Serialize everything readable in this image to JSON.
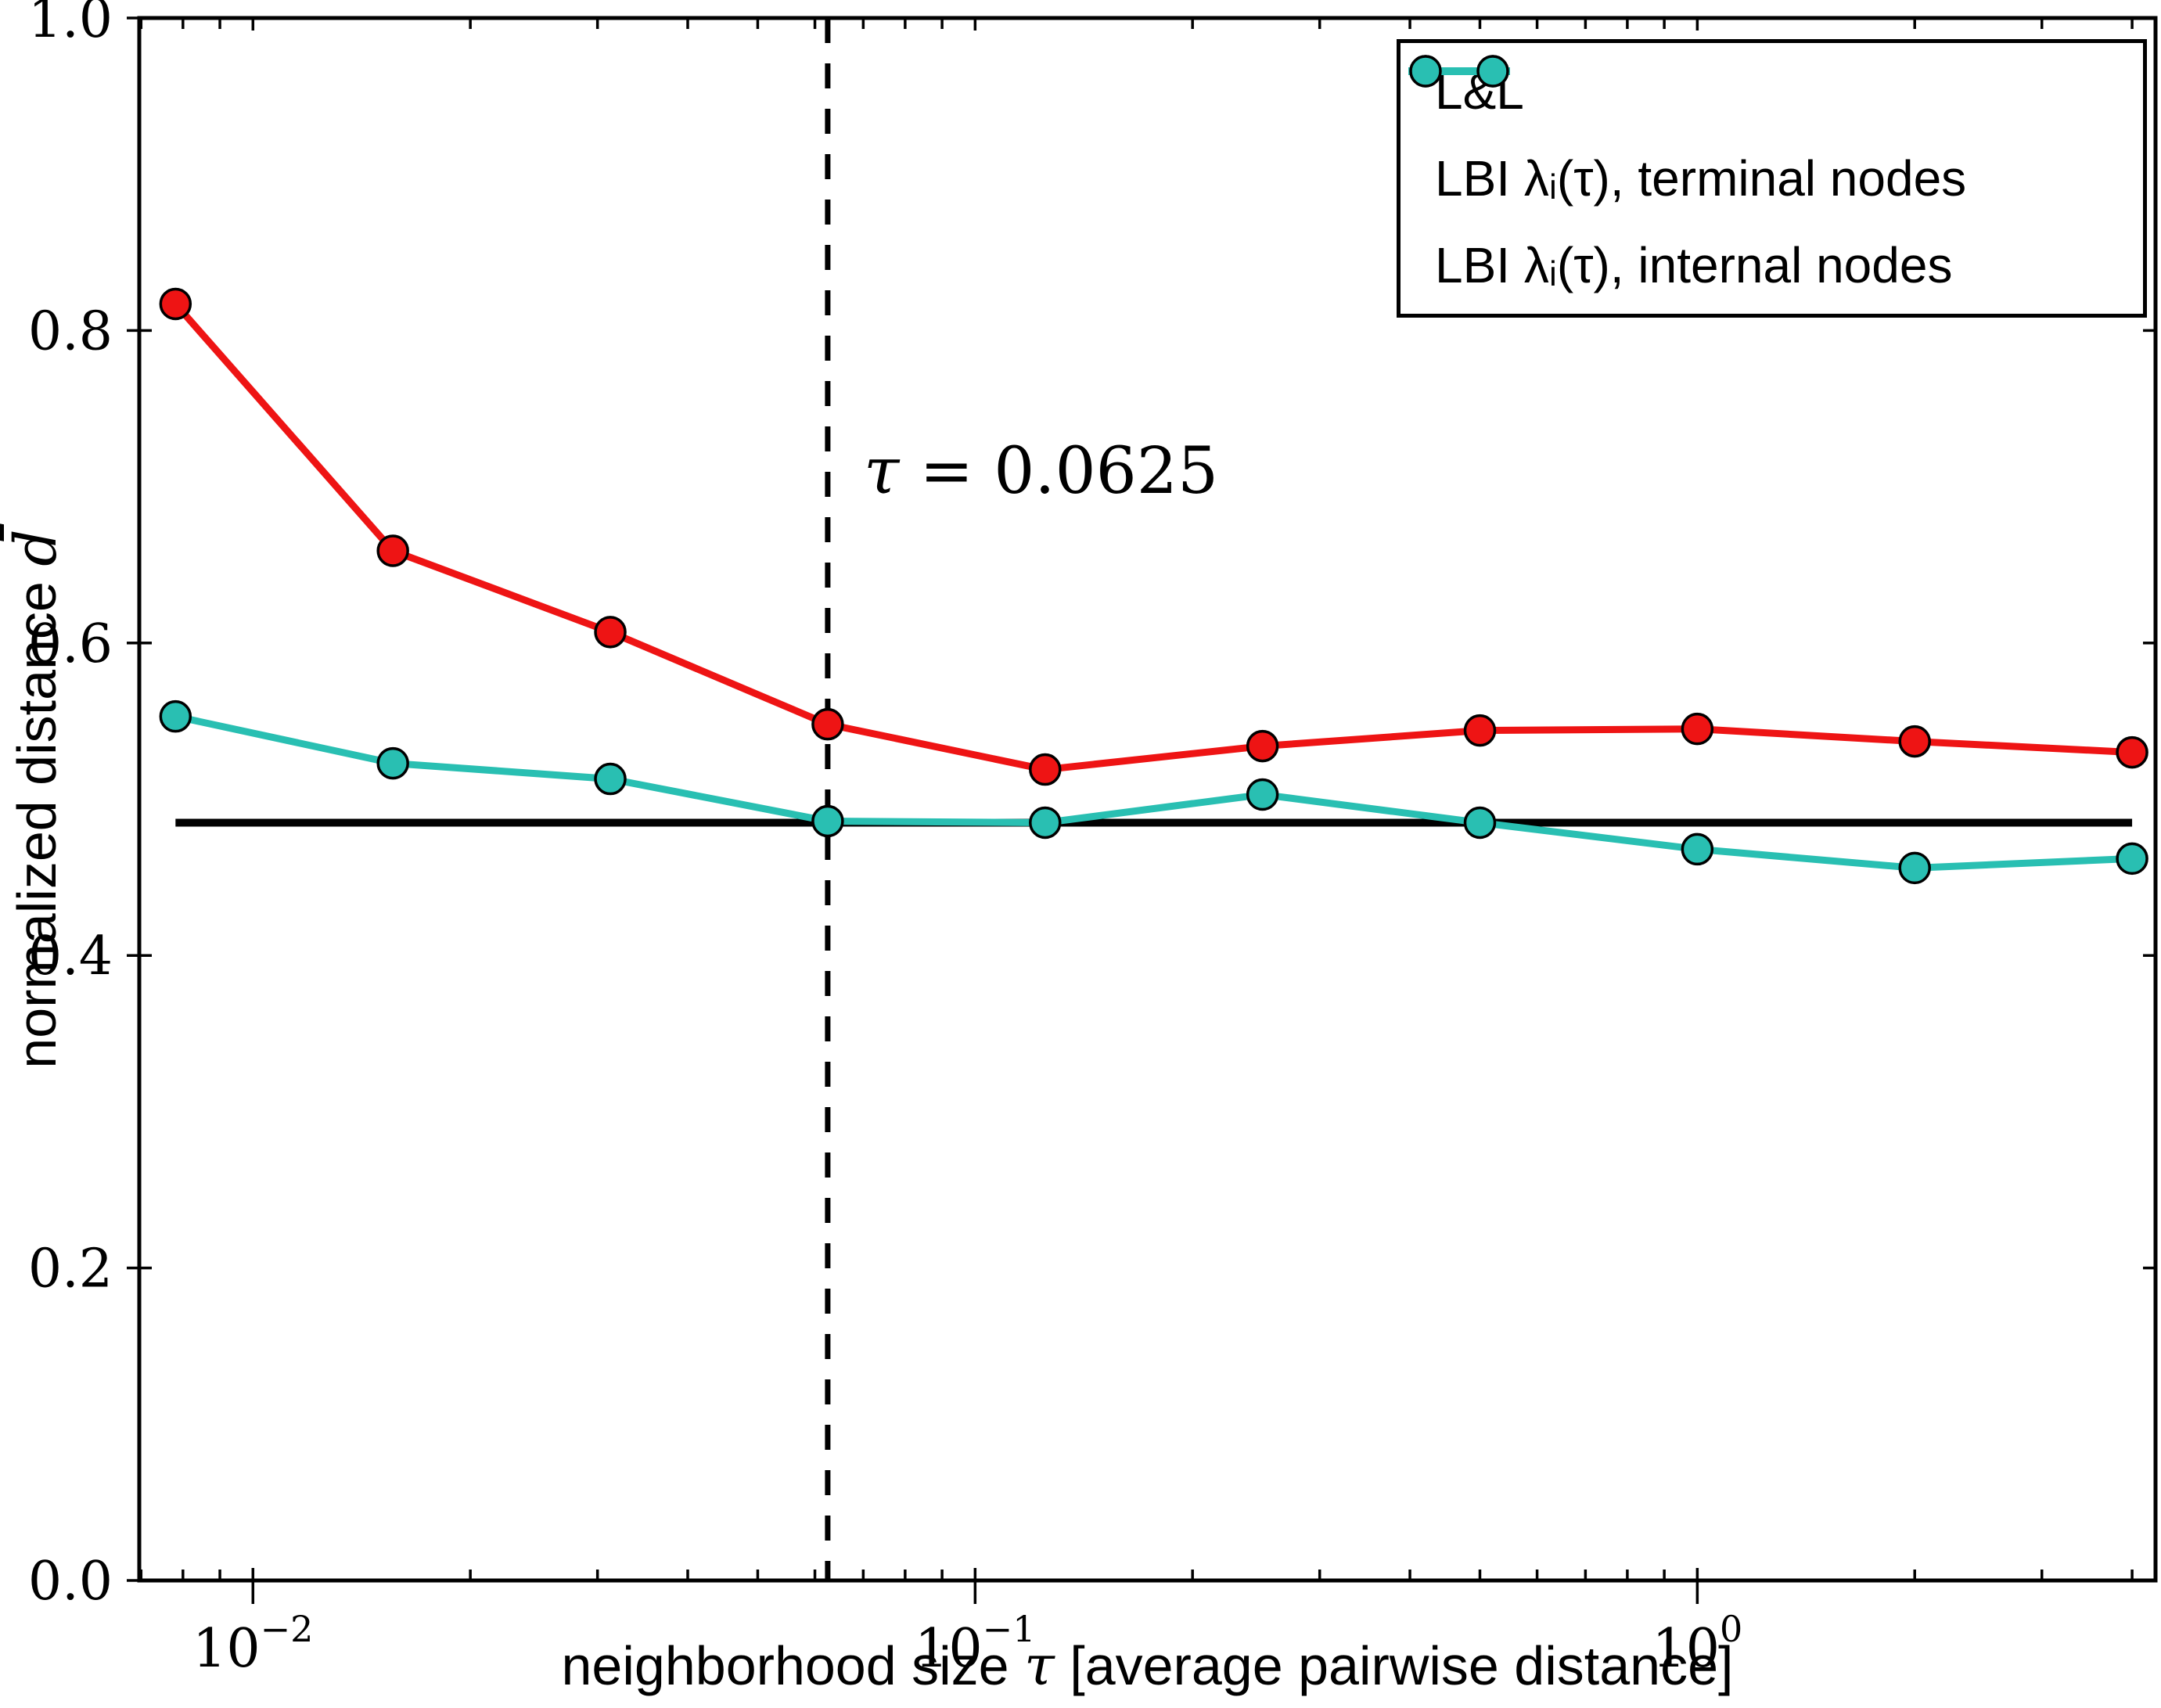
{
  "figure": {
    "xlabel_parts": {
      "prefix": "neighborhood size ",
      "var": "τ",
      "suffix": " [average pairwise distance]"
    },
    "ylabel_parts": {
      "prefix": "normalized distance ",
      "var": "d̄"
    },
    "annotation_parts": {
      "var": "τ",
      "rest": " = 0.0625"
    }
  },
  "legend": {
    "position": "upper right",
    "items": [
      {
        "label": "L&L",
        "color": "#000000",
        "markers": false
      },
      {
        "label": "LBI λᵢ(τ), terminal nodes",
        "color": "#ee1414",
        "markers": true
      },
      {
        "label": "LBI λᵢ(τ), internal nodes",
        "color": "#29bfb2",
        "markers": true
      }
    ]
  },
  "chart_data": {
    "type": "line",
    "title": "",
    "xlabel": "neighborhood size τ [average pairwise distance]",
    "ylabel": "normalized distance d̄",
    "xscale": "log",
    "yscale": "linear",
    "grid": false,
    "legend_position": "upper right",
    "xlim": [
      0.00696,
      4.31
    ],
    "ylim": [
      0.0,
      1.0
    ],
    "x": [
      0.0078125,
      0.015625,
      0.03125,
      0.0625,
      0.125,
      0.25,
      0.5,
      1,
      2,
      4
    ],
    "series": [
      {
        "name": "L&L",
        "style": "hline",
        "color": "#000000",
        "value": 0.485
      },
      {
        "name": "LBI λᵢ(τ), terminal nodes",
        "style": "line-markers",
        "color": "#ee1414",
        "values": [
          0.817,
          0.659,
          0.607,
          0.548,
          0.519,
          0.534,
          0.544,
          0.545,
          0.537,
          0.53
        ]
      },
      {
        "name": "LBI λᵢ(τ), internal nodes",
        "style": "line-markers",
        "color": "#29bfb2",
        "values": [
          0.553,
          0.523,
          0.513,
          0.486,
          0.485,
          0.503,
          0.485,
          0.468,
          0.456,
          0.462
        ]
      }
    ],
    "vline": {
      "x": 0.0625,
      "style": "dashed",
      "color": "#000000",
      "label": "τ = 0.0625"
    },
    "xticks": [
      {
        "label": "10⁻²",
        "base": "10",
        "exp": "−2",
        "value": 0.01
      },
      {
        "label": "10⁻¹",
        "base": "10",
        "exp": "−1",
        "value": 0.1
      },
      {
        "label": "10⁰",
        "base": "10",
        "exp": "0",
        "value": 1
      }
    ],
    "yticks": [
      {
        "label": "0.0",
        "value": 0.0
      },
      {
        "label": "0.2",
        "value": 0.2
      },
      {
        "label": "0.4",
        "value": 0.4
      },
      {
        "label": "0.6",
        "value": 0.6
      },
      {
        "label": "0.8",
        "value": 0.8
      },
      {
        "label": "1.0",
        "value": 1.0
      }
    ]
  }
}
